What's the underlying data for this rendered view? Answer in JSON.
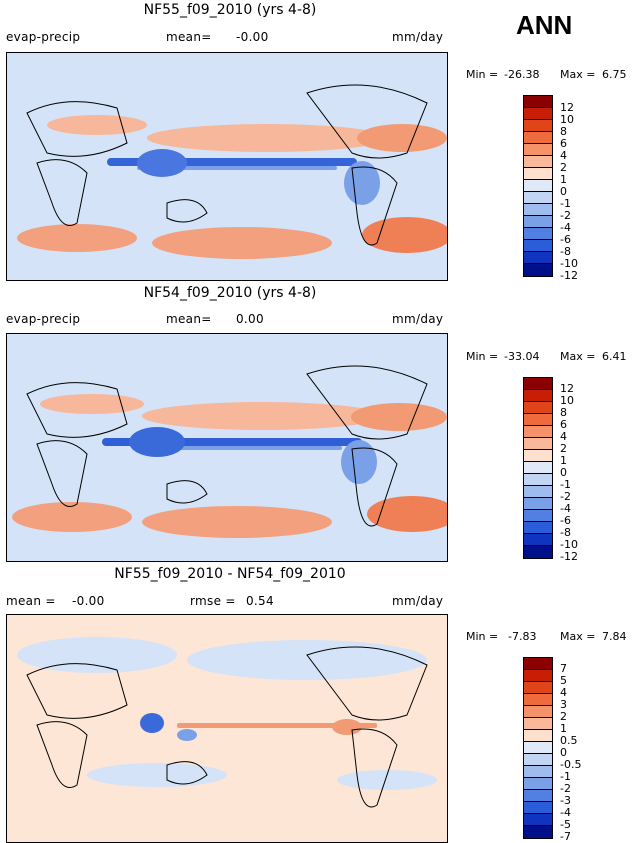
{
  "season": "ANN",
  "panels": [
    {
      "title": "NF55_f09_2010 (yrs 4-8)",
      "left_label": "evap-precip",
      "mean_label": "mean=",
      "mean_value": "-0.00",
      "units": "mm/day",
      "min_label": "Min =",
      "min_value": "-26.38",
      "max_label": "Max =",
      "max_value": "6.75",
      "levels": [
        "12",
        "10",
        "8",
        "6",
        "4",
        "2",
        "1",
        "0",
        "-1",
        "-2",
        "-4",
        "-6",
        "-8",
        "-10",
        "-12"
      ]
    },
    {
      "title": "NF54_f09_2010 (yrs 4-8)",
      "left_label": "evap-precip",
      "mean_label": "mean=",
      "mean_value": "0.00",
      "units": "mm/day",
      "min_label": "Min =",
      "min_value": "-33.04",
      "max_label": "Max =",
      "max_value": "6.41",
      "levels": [
        "12",
        "10",
        "8",
        "6",
        "4",
        "2",
        "1",
        "0",
        "-1",
        "-2",
        "-4",
        "-6",
        "-8",
        "-10",
        "-12"
      ]
    },
    {
      "title": "NF55_f09_2010 - NF54_f09_2010",
      "mean_label": "mean =",
      "mean_value": "-0.00",
      "rmse_label": "rmse =",
      "rmse_value": "0.54",
      "units": "mm/day",
      "min_label": "Min =",
      "min_value": "-7.83",
      "max_label": "Max =",
      "max_value": "7.84",
      "levels": [
        "7",
        "5",
        "4",
        "3",
        "2",
        "1",
        "0.5",
        "0",
        "-0.5",
        "-1",
        "-2",
        "-3",
        "-4",
        "-5",
        "-7"
      ]
    }
  ],
  "colors": {
    "colorbar": [
      "#8b0000",
      "#c81e05",
      "#e0451a",
      "#ef6a3d",
      "#f5926a",
      "#f9b899",
      "#fde0cd",
      "#dfe9f7",
      "#c2d5f2",
      "#9fbcee",
      "#7aa0e8",
      "#5180e2",
      "#2b5ddb",
      "#1033c0",
      "#000f8a"
    ],
    "land_outline": "#000000"
  }
}
